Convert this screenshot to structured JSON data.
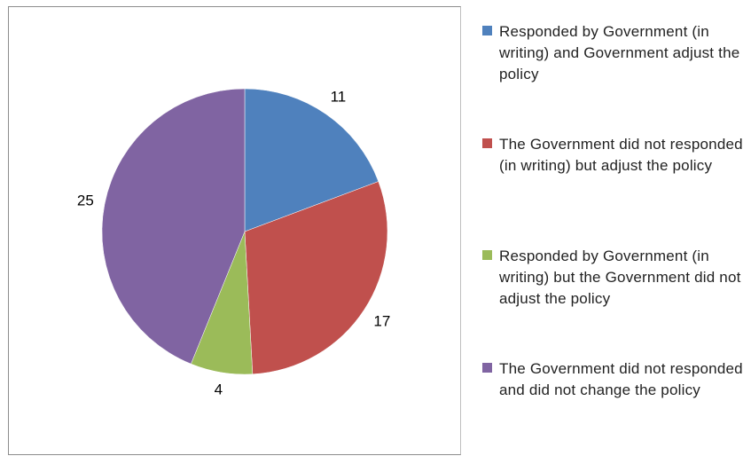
{
  "chart_data": {
    "type": "pie",
    "title": "",
    "start_angle_deg": 0,
    "direction": "clockwise",
    "slices": [
      {
        "name": "Responded by Government (in writing) and Government adjust the policy",
        "value": 11,
        "label": "11",
        "color": "#4f81bd"
      },
      {
        "name": "The Government did not responded (in writing) but adjust the policy",
        "value": 17,
        "label": "17",
        "color": "#c0504d"
      },
      {
        "name": "Responded by Government (in writing) but the Government did not adjust the policy",
        "value": 4,
        "label": "4",
        "color": "#9bbb59"
      },
      {
        "name": "The Government did not responded and did not change the policy",
        "value": 25,
        "label": "25",
        "color": "#8064a2"
      }
    ],
    "legend_position": "right"
  }
}
